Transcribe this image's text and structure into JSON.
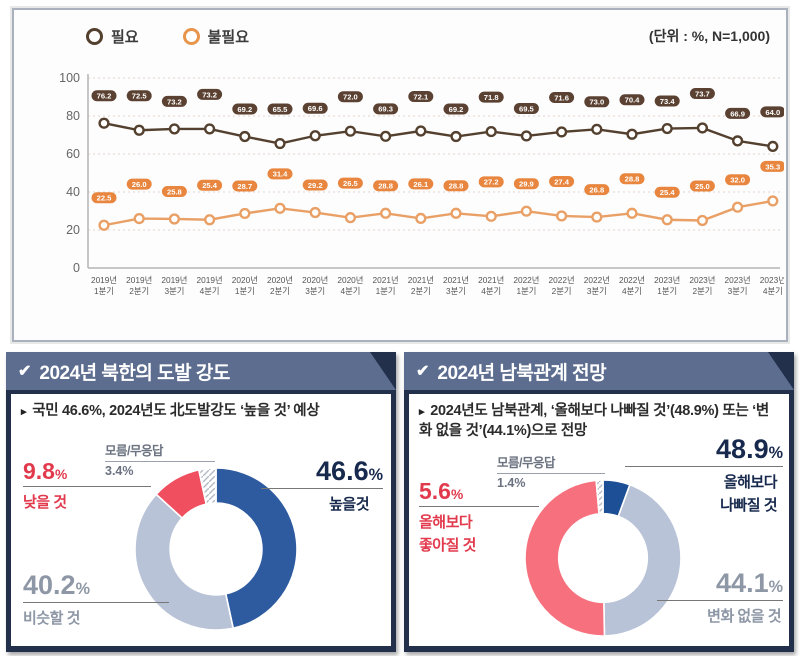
{
  "legend": {
    "items": [
      {
        "label": "필요"
      },
      {
        "label": "불필요"
      }
    ]
  },
  "chart_data": [
    {
      "type": "line",
      "unit_note": "(단위 : %, N=1,000)",
      "categories": [
        "2019년 1분기",
        "2019년 2분기",
        "2019년 3분기",
        "2019년 4분기",
        "2020년 1분기",
        "2020년 2분기",
        "2020년 3분기",
        "2020년 4분기",
        "2021년 1분기",
        "2021년 2분기",
        "2021년 3분기",
        "2021년 4분기",
        "2022년 1분기",
        "2022년 2분기",
        "2022년 3분기",
        "2022년 4분기",
        "2023년 1분기",
        "2023년 2분기",
        "2023년 3분기",
        "2023년 4분기"
      ],
      "series": [
        {
          "name": "필요",
          "line_color": "#54402f",
          "badge_color": "#5a4132",
          "values": [
            76.2,
            72.5,
            73.2,
            73.2,
            69.2,
            65.5,
            69.6,
            72.0,
            69.3,
            72.1,
            69.2,
            71.8,
            69.5,
            71.6,
            73.0,
            70.4,
            73.4,
            73.7,
            66.9,
            64.0
          ]
        },
        {
          "name": "불필요",
          "line_color": "#e9a066",
          "badge_color": "#e8863f",
          "values": [
            22.5,
            26.0,
            25.8,
            25.4,
            28.7,
            31.4,
            29.2,
            26.5,
            28.8,
            26.1,
            28.8,
            27.2,
            29.9,
            27.4,
            26.8,
            28.8,
            25.4,
            25.0,
            32.0,
            35.3
          ]
        }
      ],
      "ylim": [
        0,
        100
      ],
      "yticks": [
        0,
        20,
        40,
        60,
        80,
        100
      ],
      "grid": "horizontal-dotted",
      "legend_position": "top-left"
    },
    {
      "type": "donut",
      "title": "2024년 북한의 도발 강도",
      "direction": "clockwise",
      "start_angle_deg": 0,
      "segments": [
        {
          "label": "높을것",
          "value": 46.6,
          "color": "#2e5ba0"
        },
        {
          "label": "비슷할 것",
          "value": 40.2,
          "color": "#b9c3d7"
        },
        {
          "label": "낮을 것",
          "value": 9.8,
          "color": "#ef4f5f"
        },
        {
          "label": "모름/무응답",
          "value": 3.4,
          "color": "hatch"
        }
      ]
    },
    {
      "type": "donut",
      "title": "2024년 남북관계 전망",
      "direction": "clockwise",
      "start_angle_deg": 0,
      "segments": [
        {
          "label": "올해보다 좋아질 것",
          "value": 5.6,
          "color": "#1d4f96"
        },
        {
          "label": "변화 없을 것",
          "value": 44.1,
          "color": "#b9c3d7"
        },
        {
          "label": "올해보다 나빠질 것",
          "value": 48.9,
          "color": "#f7707e"
        },
        {
          "label": "모름/무응답",
          "value": 1.4,
          "color": "hatch"
        }
      ]
    }
  ],
  "panels": [
    {
      "header": "2024년 북한의 도발 강도",
      "bullet": "국민 46.6%, 2024년도 北도발강도 ‘높을 것’ 예상",
      "callouts": {
        "unknown_label": "모름/무응답",
        "unknown_pct": "3.4%",
        "main_pct": "46.6",
        "main_unit": "%",
        "main_label": "높을것",
        "secondary_pct": "40.2",
        "secondary_unit": "%",
        "secondary_label": "비슷할 것",
        "minor_pct": "9.8",
        "minor_unit": "%",
        "minor_label": "낮을 것"
      }
    },
    {
      "header": "2024년 남북관계 전망",
      "bullet": "2024년도 남북관계, ‘올해보다 나빠질 것’(48.9%) 또는 ‘변화 없을 것’(44.1%)으로 전망",
      "callouts": {
        "unknown_label": "모름/무응답",
        "unknown_pct": "1.4%",
        "main_pct": "48.9",
        "main_unit": "%",
        "main_label_line1": "올해보다",
        "main_label_line2": "나빠질 것",
        "secondary_pct": "44.1",
        "secondary_unit": "%",
        "secondary_label": "변화 없을 것",
        "minor_pct": "5.6",
        "minor_unit": "%",
        "minor_label_line1": "올해보다",
        "minor_label_line2": "좋아질 것"
      }
    }
  ],
  "colors": {
    "panel_bg": "#22304b",
    "header_bg": "#5d6d90",
    "accent_blue": "#2e5ba0",
    "accent_gray": "#b9c3d7",
    "accent_red": "#ef4f5f",
    "accent_pink": "#f7707e",
    "text_dark": "#17294d",
    "text_gray": "#8e97a6",
    "text_red": "#e23a4d"
  }
}
